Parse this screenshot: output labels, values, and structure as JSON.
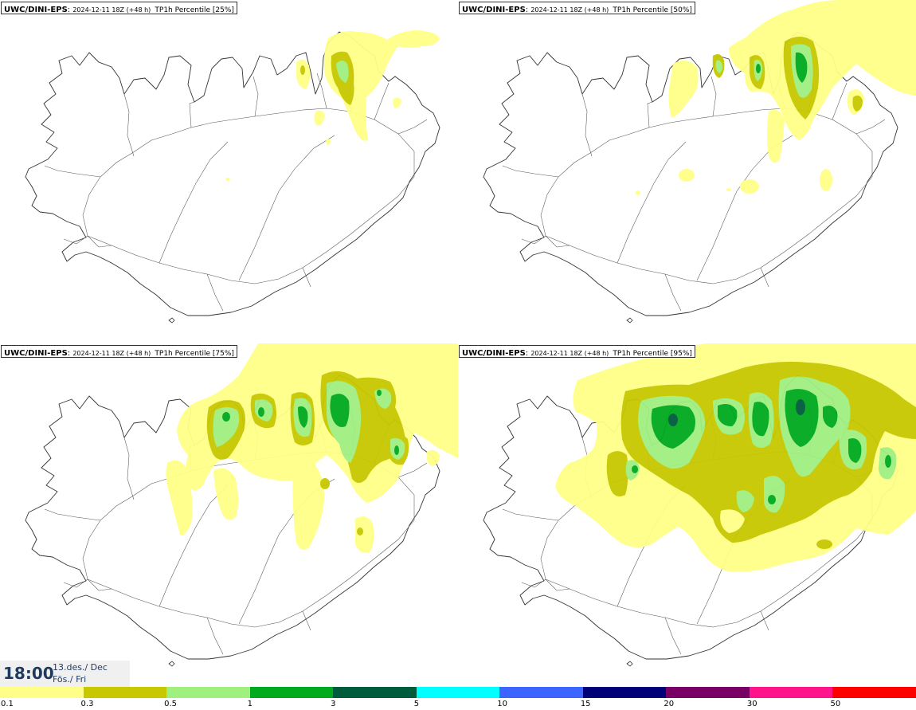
{
  "panels": [
    {
      "source": "UWC/DINI-EPS",
      "run": "2024-12-11 18Z (+48 h)",
      "parameter": "TP1h Percentile [25%]"
    },
    {
      "source": "UWC/DINI-EPS",
      "run": "2024-12-11 18Z (+48 h)",
      "parameter": "TP1h Percentile [50%]"
    },
    {
      "source": "UWC/DINI-EPS",
      "run": "2024-12-11 18Z (+48 h)",
      "parameter": "TP1h Percentile [75%]"
    },
    {
      "source": "UWC/DINI-EPS",
      "run": "2024-12-11 18Z (+48 h)",
      "parameter": "TP1h Percentile [95%]"
    }
  ],
  "valid_time": {
    "time": "18:00",
    "date_line1": "13.des./ Dec",
    "date_line2": "Fös./ Fri"
  },
  "legend": {
    "ticks": [
      "0.1",
      "0.3",
      "0.5",
      "1",
      "3",
      "5",
      "10",
      "15",
      "20",
      "30",
      "50"
    ],
    "colors": [
      "#ffff88",
      "#c8c800",
      "#a0f080",
      "#00aa1e",
      "#005a3c",
      "#00ffff",
      "#3c64ff",
      "#000078",
      "#780064",
      "#ff148c",
      "#ff0000"
    ]
  },
  "colors": {
    "coast": "#333333",
    "road": "#555555"
  }
}
